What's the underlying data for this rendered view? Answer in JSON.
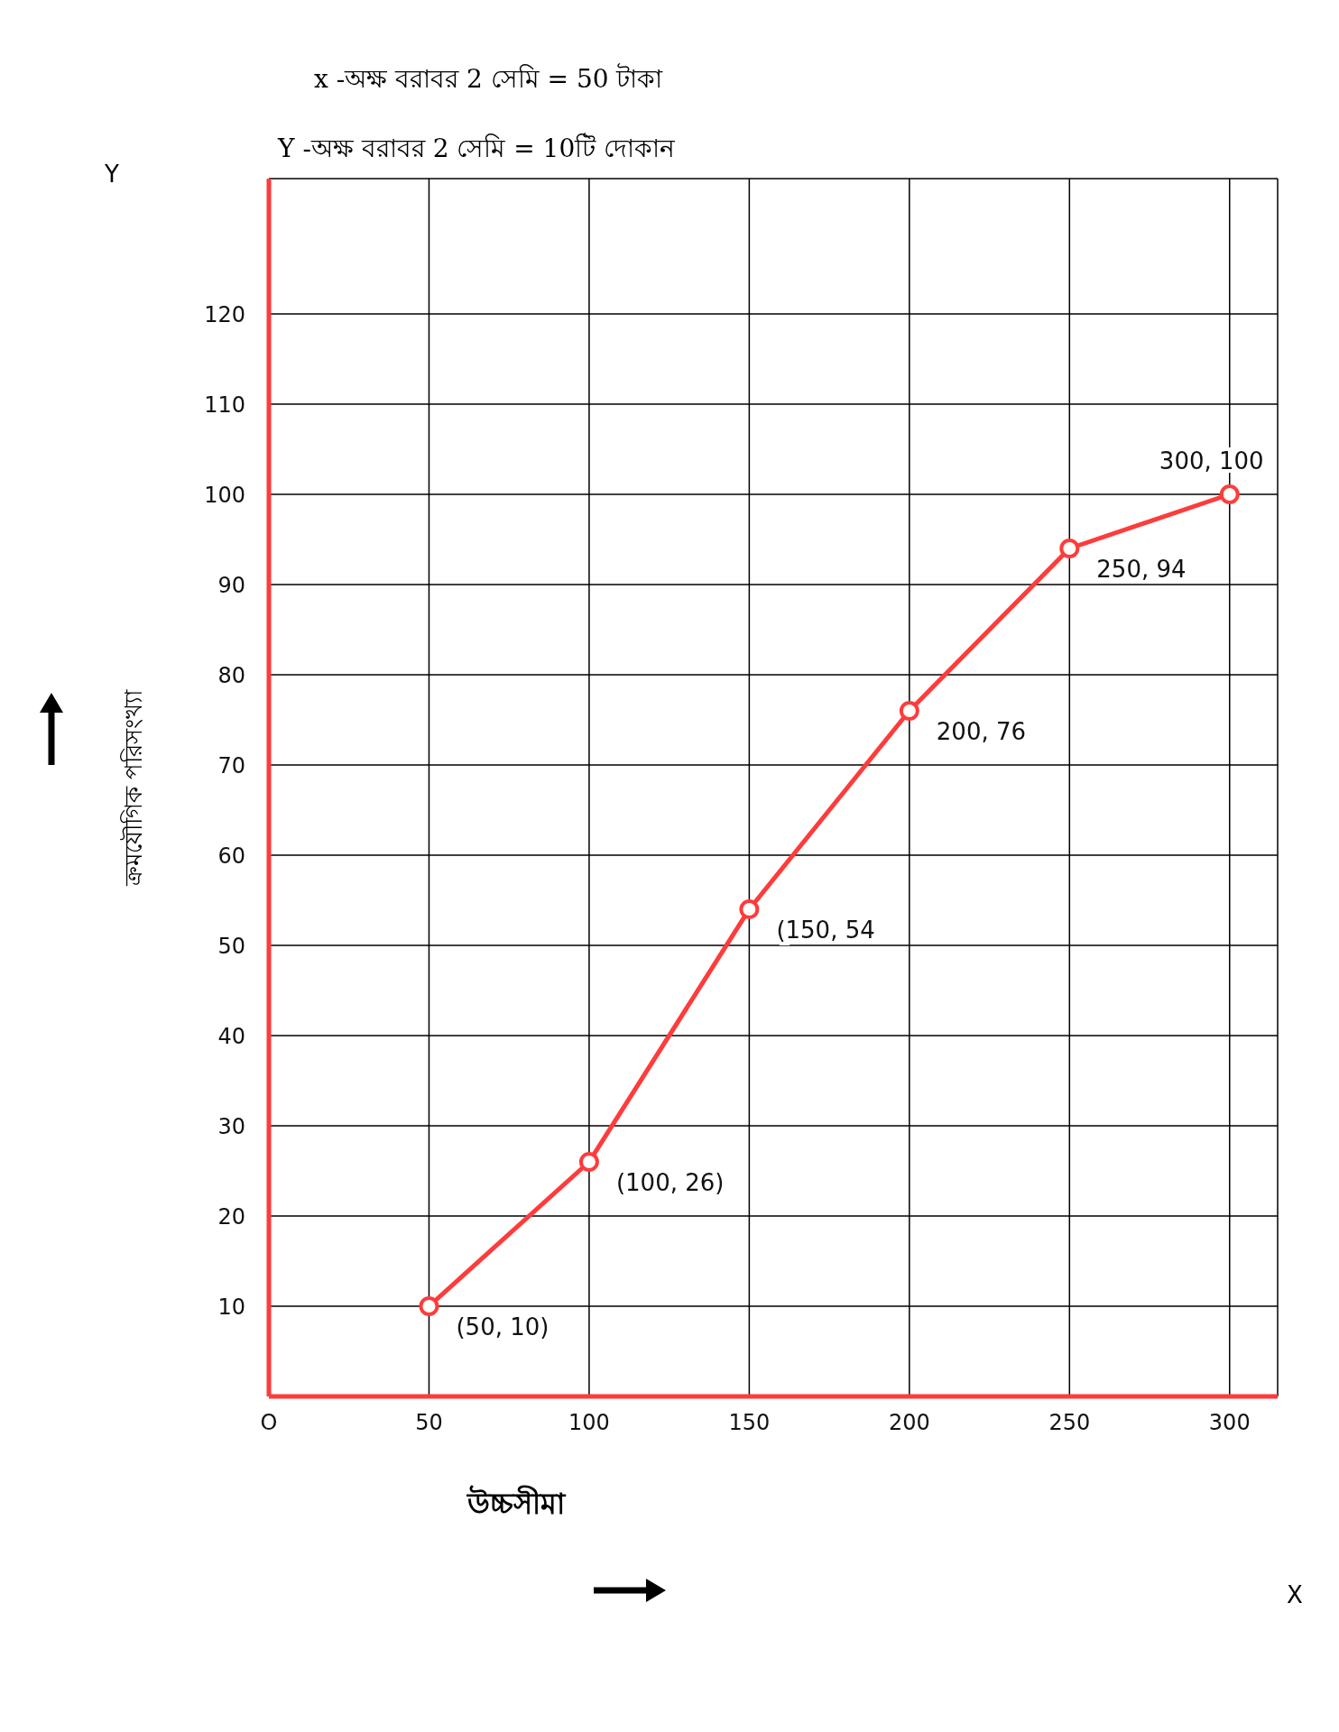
{
  "chart_data": {
    "type": "line",
    "xlabel": "উচ্চসীমা",
    "ylabel": "ক্রমযৌগিক পরিসংখ্যা",
    "annotations": [
      "x -অক্ষ বরাবর 2 সেমি = 50 টাকা",
      "Y -অক্ষ বরাবর 2 সেমি = 10টি দোকান",
      "X",
      "Y"
    ],
    "x": [
      50,
      100,
      150,
      200,
      250,
      300
    ],
    "series": [
      {
        "color": "#ff3b3b",
        "values": [
          10,
          26,
          54,
          76,
          94,
          100
        ],
        "value_labels": [
          "(50, 10)",
          "(100, 26)",
          "(150, 54",
          "200, 76",
          "250, 94",
          "300, 100"
        ]
      }
    ],
    "xlim": [
      0,
      315
    ],
    "xticks": [
      {
        "value": 0,
        "label": "O"
      },
      50,
      100,
      150,
      200,
      250,
      300
    ],
    "ylim": [
      0,
      135
    ],
    "yticks": [
      10,
      20,
      30,
      40,
      50,
      60,
      70,
      80,
      90,
      100,
      110,
      120
    ],
    "grid": true,
    "marker": "circle",
    "line_style": "solid"
  }
}
